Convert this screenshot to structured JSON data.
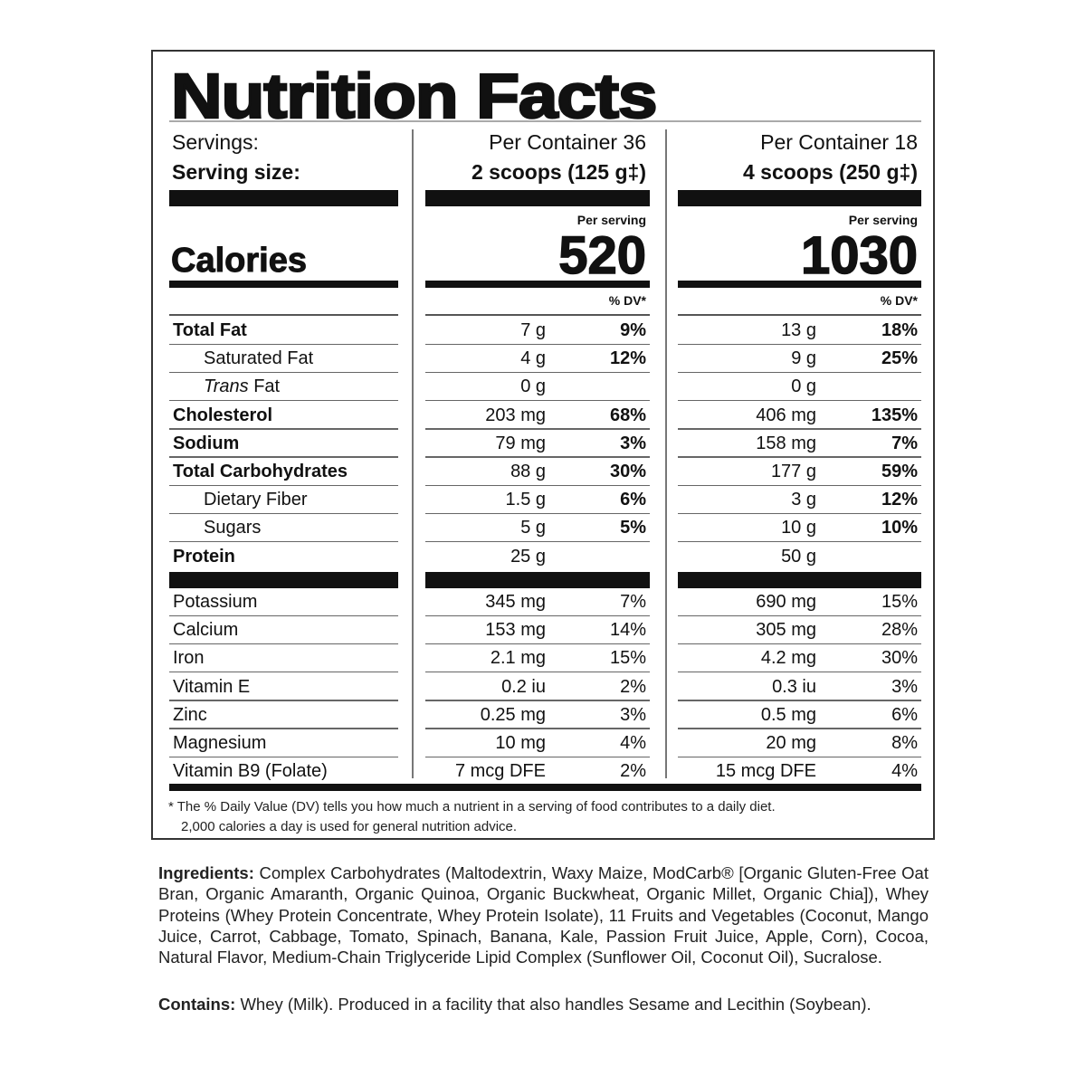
{
  "title": "Nutrition Facts",
  "header": {
    "servings_label": "Servings:",
    "serving_size_label": "Serving size:",
    "calories_label": "Calories",
    "per_serving_label": "Per serving",
    "dv_label": "% DV*"
  },
  "columns": [
    {
      "servings": "Per Container 36",
      "serving_size": "2 scoops (125 g‡)",
      "calories": "520"
    },
    {
      "servings": "Per Container 18",
      "serving_size": "4 scoops (250 g‡)",
      "calories": "1030"
    }
  ],
  "nutrients": [
    {
      "name": "Total Fat",
      "bold": true,
      "indent": false,
      "values": [
        [
          "7 g",
          "9%"
        ],
        [
          "13 g",
          "18%"
        ]
      ]
    },
    {
      "name": "Saturated Fat",
      "bold": false,
      "indent": true,
      "values": [
        [
          "4 g",
          "12%"
        ],
        [
          "9 g",
          "25%"
        ]
      ]
    },
    {
      "name": "Trans Fat",
      "italic_prefix": "Trans",
      "suffix": " Fat",
      "bold": false,
      "indent": true,
      "values": [
        [
          "0 g",
          ""
        ],
        [
          "0 g",
          ""
        ]
      ]
    },
    {
      "name": "Cholesterol",
      "bold": true,
      "indent": false,
      "values": [
        [
          "203 mg",
          "68%"
        ],
        [
          "406 mg",
          "135%"
        ]
      ]
    },
    {
      "name": "Sodium",
      "bold": true,
      "indent": false,
      "values": [
        [
          "79 mg",
          "3%"
        ],
        [
          "158 mg",
          "7%"
        ]
      ]
    },
    {
      "name": "Total Carbohydrates",
      "bold": true,
      "indent": false,
      "values": [
        [
          "88 g",
          "30%"
        ],
        [
          "177 g",
          "59%"
        ]
      ]
    },
    {
      "name": "Dietary Fiber",
      "bold": false,
      "indent": true,
      "values": [
        [
          "1.5 g",
          "6%"
        ],
        [
          "3 g",
          "12%"
        ]
      ]
    },
    {
      "name": "Sugars",
      "bold": false,
      "indent": true,
      "values": [
        [
          "5 g",
          "5%"
        ],
        [
          "10 g",
          "10%"
        ]
      ]
    },
    {
      "name": "Protein",
      "bold": true,
      "indent": false,
      "values": [
        [
          "25 g",
          ""
        ],
        [
          "50 g",
          ""
        ]
      ]
    }
  ],
  "minerals": [
    {
      "name": "Potassium",
      "values": [
        [
          "345 mg",
          "7%"
        ],
        [
          "690 mg",
          "15%"
        ]
      ]
    },
    {
      "name": "Calcium",
      "values": [
        [
          "153 mg",
          "14%"
        ],
        [
          "305 mg",
          "28%"
        ]
      ]
    },
    {
      "name": "Iron",
      "values": [
        [
          "2.1 mg",
          "15%"
        ],
        [
          "4.2 mg",
          "30%"
        ]
      ]
    },
    {
      "name": "Vitamin E",
      "values": [
        [
          "0.2 iu",
          "2%"
        ],
        [
          "0.3 iu",
          "3%"
        ]
      ]
    },
    {
      "name": "Zinc",
      "values": [
        [
          "0.25 mg",
          "3%"
        ],
        [
          "0.5 mg",
          "6%"
        ]
      ]
    },
    {
      "name": "Magnesium",
      "values": [
        [
          "10 mg",
          "4%"
        ],
        [
          "20 mg",
          "8%"
        ]
      ]
    },
    {
      "name": "Vitamin B9 (Folate)",
      "values": [
        [
          "7 mcg DFE",
          "2%"
        ],
        [
          "15 mcg DFE",
          "4%"
        ]
      ]
    }
  ],
  "footnote": {
    "line1": "* The % Daily Value (DV) tells you how much a nutrient in a serving of food contributes to a daily diet.",
    "line2": "2,000 calories a day is used for general nutrition advice."
  },
  "ingredients": {
    "label": "Ingredients:",
    "text": " Complex Carbohydrates (Maltodextrin, Waxy Maize, ModCarb® [Organic Gluten-Free Oat Bran, Organic Amaranth, Organic Quinoa, Organic Buckwheat, Organic Millet, Organic Chia]), Whey Proteins (Whey Protein Concentrate, Whey Protein Isolate), 11 Fruits and Vegetables (Coconut, Mango Juice, Carrot, Cabbage, Tomato, Spinach, Banana, Kale, Passion Fruit Juice, Apple, Corn), Cocoa, Natural Flavor, Medium-Chain Triglyceride Lipid Complex (Sunflower Oil, Coconut Oil), Sucralose."
  },
  "contains": {
    "label": "Contains:",
    "text": " Whey (Milk). Produced in a facility that also handles Sesame and Lecithin (Soybean)."
  }
}
